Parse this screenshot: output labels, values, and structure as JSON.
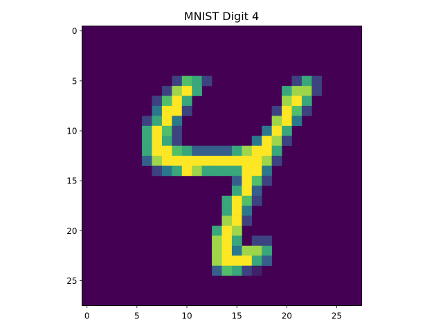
{
  "chart_data": {
    "type": "heatmap",
    "title": "MNIST Digit 4",
    "xlabel": "",
    "ylabel": "",
    "xlim": [
      -0.5,
      27.5
    ],
    "ylim": [
      27.5,
      -0.5
    ],
    "x_ticks": [
      0,
      5,
      10,
      15,
      20,
      25
    ],
    "y_ticks": [
      0,
      5,
      10,
      15,
      20,
      25
    ],
    "x_tick_labels": [
      "0",
      "5",
      "10",
      "15",
      "20",
      "25"
    ],
    "y_tick_labels": [
      "0",
      "5",
      "10",
      "15",
      "20",
      "25"
    ],
    "colormap": "viridis",
    "value_range": [
      0,
      1
    ],
    "grid": false,
    "rows": 28,
    "cols": 28,
    "pixels": [
      [
        5,
        9,
        0.2
      ],
      [
        5,
        10,
        0.7
      ],
      [
        5,
        11,
        0.6
      ],
      [
        5,
        12,
        0.2
      ],
      [
        5,
        21,
        0.2
      ],
      [
        5,
        22,
        0.6
      ],
      [
        5,
        23,
        0.2
      ],
      [
        6,
        8,
        0.2
      ],
      [
        6,
        9,
        0.85
      ],
      [
        6,
        10,
        1.0
      ],
      [
        6,
        11,
        0.6
      ],
      [
        6,
        20,
        0.6
      ],
      [
        6,
        21,
        0.85
      ],
      [
        6,
        22,
        0.85
      ],
      [
        6,
        23,
        0.2
      ],
      [
        7,
        7,
        0.2
      ],
      [
        7,
        8,
        0.7
      ],
      [
        7,
        9,
        1.0
      ],
      [
        7,
        10,
        0.6
      ],
      [
        7,
        20,
        0.85
      ],
      [
        7,
        21,
        1.0
      ],
      [
        7,
        22,
        0.6
      ],
      [
        8,
        7,
        0.4
      ],
      [
        8,
        8,
        1.0
      ],
      [
        8,
        9,
        1.0
      ],
      [
        8,
        10,
        0.2
      ],
      [
        8,
        19,
        0.2
      ],
      [
        8,
        20,
        1.0
      ],
      [
        8,
        21,
        0.7
      ],
      [
        8,
        22,
        0.2
      ],
      [
        9,
        6,
        0.2
      ],
      [
        9,
        7,
        0.6
      ],
      [
        9,
        8,
        1.0
      ],
      [
        9,
        9,
        0.4
      ],
      [
        9,
        19,
        0.85
      ],
      [
        9,
        20,
        1.0
      ],
      [
        9,
        21,
        0.4
      ],
      [
        10,
        6,
        0.6
      ],
      [
        10,
        7,
        1.0
      ],
      [
        10,
        8,
        0.7
      ],
      [
        10,
        9,
        0.2
      ],
      [
        10,
        18,
        0.4
      ],
      [
        10,
        19,
        1.0
      ],
      [
        10,
        20,
        0.6
      ],
      [
        11,
        6,
        0.6
      ],
      [
        11,
        7,
        1.0
      ],
      [
        11,
        8,
        0.6
      ],
      [
        11,
        9,
        0.2
      ],
      [
        11,
        17,
        0.4
      ],
      [
        11,
        18,
        1.0
      ],
      [
        11,
        19,
        0.85
      ],
      [
        11,
        20,
        0.2
      ],
      [
        12,
        6,
        0.6
      ],
      [
        12,
        7,
        1.0
      ],
      [
        12,
        8,
        1.0
      ],
      [
        12,
        9,
        0.7
      ],
      [
        12,
        10,
        0.6
      ],
      [
        12,
        11,
        0.3
      ],
      [
        12,
        12,
        0.3
      ],
      [
        12,
        13,
        0.3
      ],
      [
        12,
        14,
        0.3
      ],
      [
        12,
        15,
        0.6
      ],
      [
        12,
        16,
        0.85
      ],
      [
        12,
        17,
        1.0
      ],
      [
        12,
        18,
        1.0
      ],
      [
        12,
        19,
        0.6
      ],
      [
        13,
        6,
        0.3
      ],
      [
        13,
        7,
        0.85
      ],
      [
        13,
        8,
        1.0
      ],
      [
        13,
        9,
        1.0
      ],
      [
        13,
        10,
        1.0
      ],
      [
        13,
        11,
        1.0
      ],
      [
        13,
        12,
        1.0
      ],
      [
        13,
        13,
        1.0
      ],
      [
        13,
        14,
        1.0
      ],
      [
        13,
        15,
        1.0
      ],
      [
        13,
        16,
        1.0
      ],
      [
        13,
        17,
        1.0
      ],
      [
        13,
        18,
        0.85
      ],
      [
        13,
        19,
        0.2
      ],
      [
        14,
        7,
        0.2
      ],
      [
        14,
        8,
        0.4
      ],
      [
        14,
        9,
        0.6
      ],
      [
        14,
        10,
        1.0
      ],
      [
        14,
        11,
        0.85
      ],
      [
        14,
        12,
        0.6
      ],
      [
        14,
        13,
        0.6
      ],
      [
        14,
        14,
        0.6
      ],
      [
        14,
        15,
        0.6
      ],
      [
        14,
        16,
        1.0
      ],
      [
        14,
        17,
        1.0
      ],
      [
        14,
        18,
        0.4
      ],
      [
        15,
        15,
        0.3
      ],
      [
        15,
        16,
        1.0
      ],
      [
        15,
        17,
        0.7
      ],
      [
        15,
        18,
        0.2
      ],
      [
        16,
        15,
        0.6
      ],
      [
        16,
        16,
        1.0
      ],
      [
        16,
        17,
        0.3
      ],
      [
        17,
        14,
        0.6
      ],
      [
        17,
        15,
        1.0
      ],
      [
        17,
        16,
        0.7
      ],
      [
        17,
        17,
        0.2
      ],
      [
        18,
        14,
        0.6
      ],
      [
        18,
        15,
        1.0
      ],
      [
        18,
        16,
        0.4
      ],
      [
        19,
        14,
        0.85
      ],
      [
        19,
        15,
        1.0
      ],
      [
        19,
        16,
        0.2
      ],
      [
        20,
        13,
        0.6
      ],
      [
        20,
        14,
        1.0
      ],
      [
        20,
        15,
        0.85
      ],
      [
        21,
        13,
        0.85
      ],
      [
        21,
        14,
        1.0
      ],
      [
        21,
        15,
        0.6
      ],
      [
        21,
        17,
        0.2
      ],
      [
        21,
        18,
        0.2
      ],
      [
        22,
        13,
        0.85
      ],
      [
        22,
        14,
        1.0
      ],
      [
        22,
        15,
        0.4
      ],
      [
        22,
        16,
        0.85
      ],
      [
        22,
        17,
        0.85
      ],
      [
        22,
        18,
        0.6
      ],
      [
        23,
        13,
        0.85
      ],
      [
        23,
        14,
        1.0
      ],
      [
        23,
        15,
        1.0
      ],
      [
        23,
        16,
        1.0
      ],
      [
        23,
        17,
        0.6
      ],
      [
        23,
        18,
        0.3
      ],
      [
        24,
        13,
        0.3
      ],
      [
        24,
        14,
        0.7
      ],
      [
        24,
        15,
        0.6
      ],
      [
        24,
        16,
        0.2
      ],
      [
        24,
        17,
        0.1
      ]
    ]
  }
}
